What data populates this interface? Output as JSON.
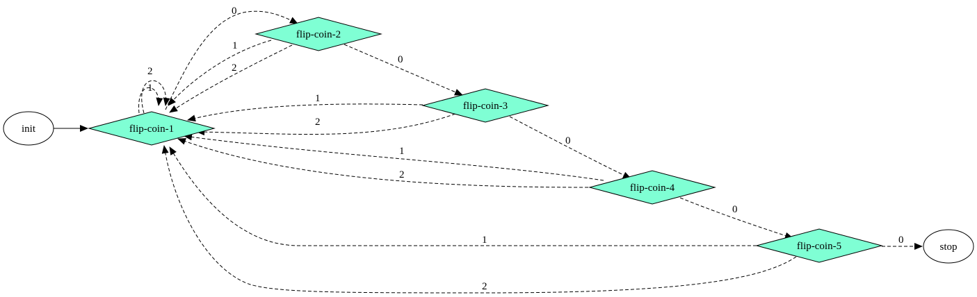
{
  "colors": {
    "diamond_fill": "#7fffd4",
    "stroke": "#000000",
    "ellipse_fill": "#ffffff"
  },
  "nodes": {
    "init": "init",
    "stop": "stop",
    "flip1": "flip-coin-1",
    "flip2": "flip-coin-2",
    "flip3": "flip-coin-3",
    "flip4": "flip-coin-4",
    "flip5": "flip-coin-5"
  },
  "edges": {
    "e_f2_f1_1": "1",
    "e_f2_f1_2": "2",
    "e_f1_f1_2": "2",
    "e_f1_f1_1": "1",
    "e_f1_f2_0": "0",
    "e_f2_f3_0": "0",
    "e_f3_f1_1": "1",
    "e_f3_f1_2": "2",
    "e_f3_f4_0": "0",
    "e_f4_f1_1": "1",
    "e_f4_f1_2": "2",
    "e_f4_f5_0": "0",
    "e_f5_f1_1": "1",
    "e_f5_f1_2": "2",
    "e_f5_stop_0": "0"
  }
}
